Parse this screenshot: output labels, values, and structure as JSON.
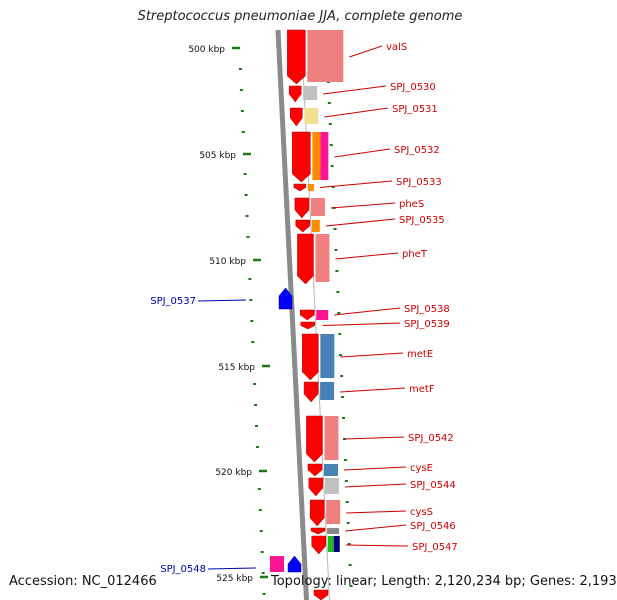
{
  "title": "Streptococcus pneumoniae JJA, complete genome",
  "footer": {
    "accession": "Accession: NC_012466",
    "topology": "Topology: linear; Length: 2,120,234 bp; Genes: 2,193"
  },
  "colors": {
    "forward_gene": "#ff0000",
    "reverse_gene": "#0000ff",
    "label_forward": "#cc0000",
    "label_reverse": "#0000aa",
    "backbone": "#888888",
    "ticks": "#1a7a1a"
  },
  "scale": {
    "unit": "kbp",
    "tick_labels": [
      "500 kbp",
      "505 kbp",
      "510 kbp",
      "515 kbp",
      "520 kbp",
      "525 kbp"
    ]
  },
  "forward_genes": [
    {
      "name": "valS"
    },
    {
      "name": "SPJ_0530"
    },
    {
      "name": "SPJ_0531"
    },
    {
      "name": "SPJ_0532"
    },
    {
      "name": "SPJ_0533"
    },
    {
      "name": "pheS"
    },
    {
      "name": "SPJ_0535"
    },
    {
      "name": "pheT"
    },
    {
      "name": "SPJ_0538"
    },
    {
      "name": "SPJ_0539"
    },
    {
      "name": "metE"
    },
    {
      "name": "metF"
    },
    {
      "name": "SPJ_0542"
    },
    {
      "name": "cysE"
    },
    {
      "name": "SPJ_0544"
    },
    {
      "name": "cysS"
    },
    {
      "name": "SPJ_0546"
    },
    {
      "name": "SPJ_0547"
    }
  ],
  "reverse_genes": [
    {
      "name": "SPJ_0537"
    },
    {
      "name": "SPJ_0548"
    }
  ]
}
